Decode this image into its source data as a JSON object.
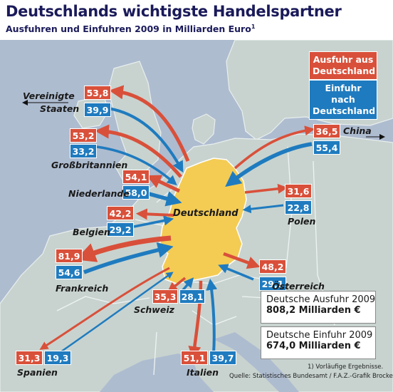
{
  "title": "Deutschlands wichtigste Handelspartner",
  "subtitle": "Ausfuhren und Einfuhren 2009 in Milliarden Euro",
  "subtitle_footnote_mark": "1",
  "colors": {
    "export": "#d9503a",
    "import": "#1f7bbf",
    "germany": "#f4cc54",
    "sea": "#aebcd0",
    "land": "#c8d3cf"
  },
  "legend": {
    "export_label": "Ausfuhr aus Deutschland",
    "import_label": "Einfuhr nach Deutschland"
  },
  "center_label": "Deutschland",
  "partners": [
    {
      "id": "usa",
      "name_line1": "Vereinigte",
      "name_line2": "Staaten",
      "export": "53,8",
      "import": "39,9"
    },
    {
      "id": "uk",
      "name": "Großbritannien",
      "export": "53,2",
      "import": "33,2"
    },
    {
      "id": "nl",
      "name": "Niederlande",
      "export": "54,1",
      "import": "58,0"
    },
    {
      "id": "be",
      "name": "Belgien",
      "export": "42,2",
      "import": "29,2"
    },
    {
      "id": "fr",
      "name": "Frankreich",
      "export": "81,9",
      "import": "54,6"
    },
    {
      "id": "ch",
      "name": "Schweiz",
      "export": "35,3",
      "import": "28,1"
    },
    {
      "id": "es",
      "name": "Spanien",
      "export": "31,3",
      "import": "19,3"
    },
    {
      "id": "it",
      "name": "Italien",
      "export": "51,1",
      "import": "39,7"
    },
    {
      "id": "at",
      "name": "Österreich",
      "export": "48,2",
      "import": "29,1"
    },
    {
      "id": "pl",
      "name": "Polen",
      "export": "31,6",
      "import": "22,8"
    },
    {
      "id": "cn",
      "name": "China",
      "export": "36,5",
      "import": "55,4"
    }
  ],
  "totals": {
    "export_label": "Deutsche Ausfuhr 2009",
    "export_value": "808,2 Milliarden €",
    "import_label": "Deutsche Einfuhr 2009",
    "import_value": "674,0 Milliarden €"
  },
  "footnote": "1) Vorläufige Ergebnisse.",
  "source": "Quelle: Statistisches Bundesamt / F.A.Z.-Grafik Brocker"
}
